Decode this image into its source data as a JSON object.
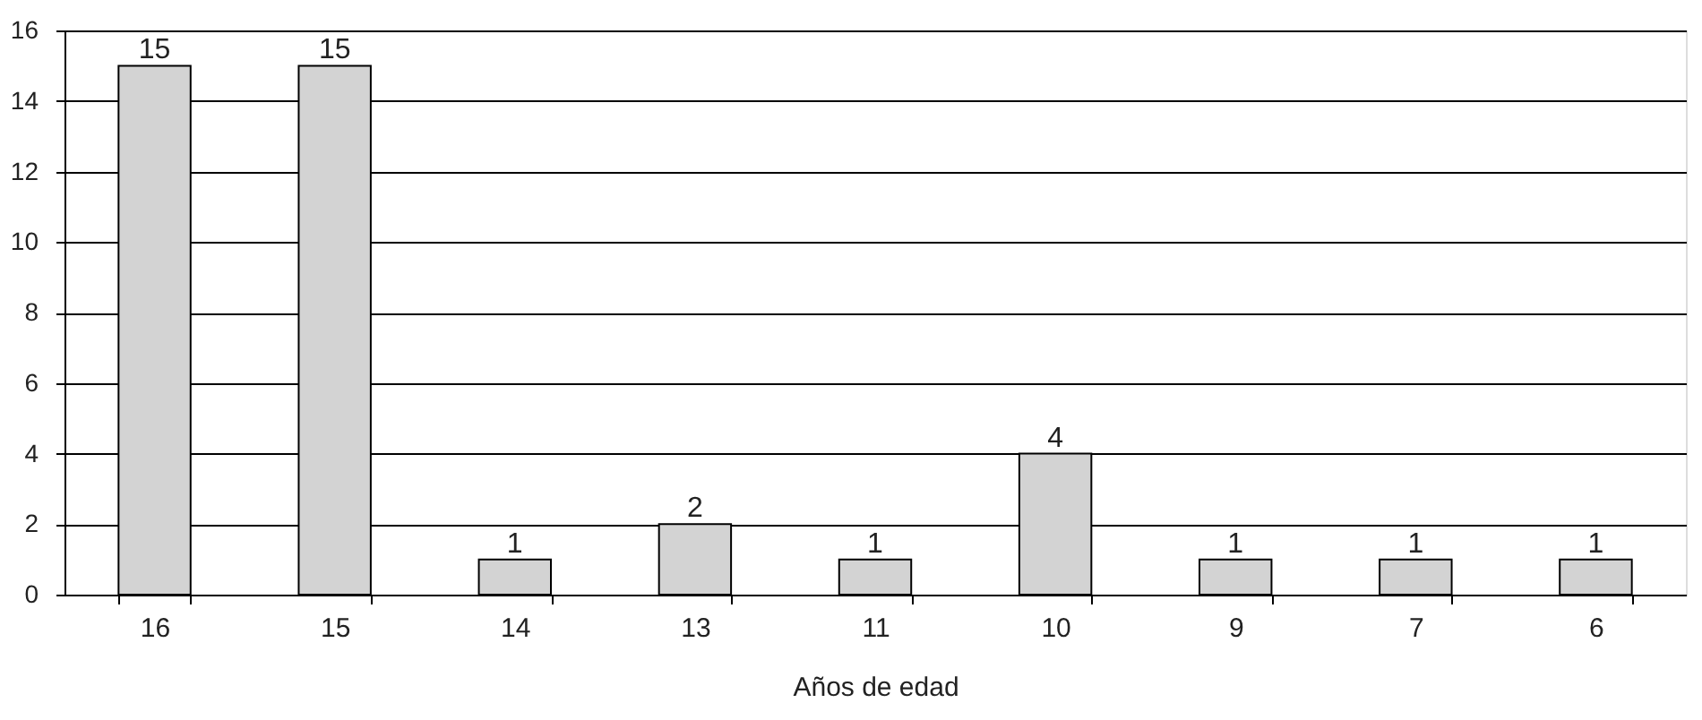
{
  "chart_data": {
    "type": "bar",
    "xlabel": "Años de edad",
    "categories": [
      "16",
      "15",
      "14",
      "13",
      "11",
      "10",
      "9",
      "7",
      "6"
    ],
    "values": [
      15,
      15,
      1,
      2,
      1,
      4,
      1,
      1,
      1
    ],
    "color": "#d3d3d3",
    "ylim": [
      0,
      16
    ],
    "yticks": [
      0,
      2,
      4,
      6,
      8,
      10,
      12,
      14,
      16
    ],
    "grid": "y",
    "data_labels": true
  }
}
